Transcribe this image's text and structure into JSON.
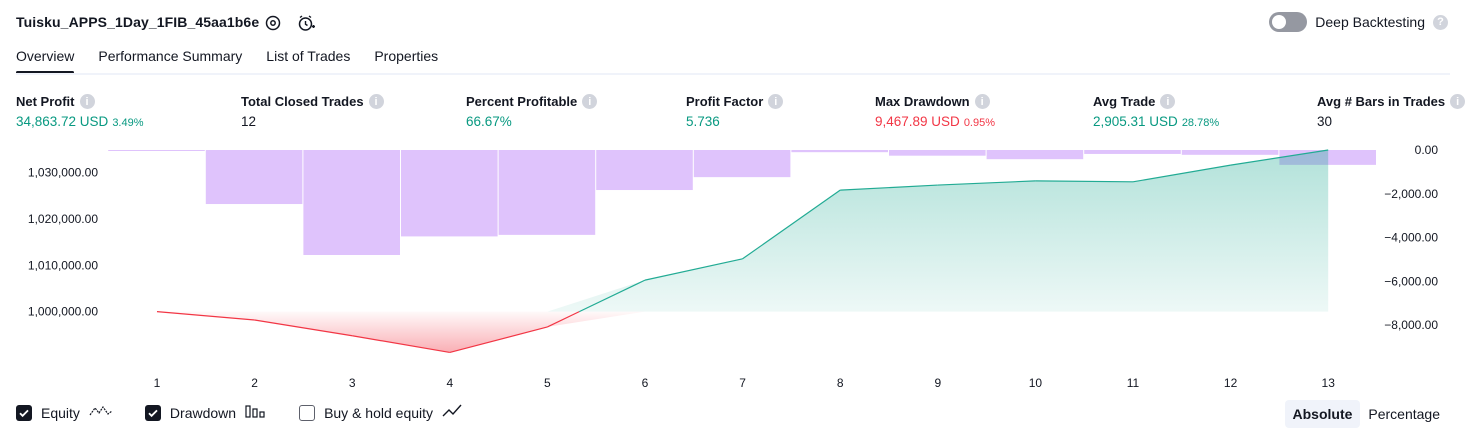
{
  "header": {
    "strategy_name": "Tuisku_APPS_1Day_1FIB_45aa1b6e",
    "settings_icon": "gear-icon",
    "alert_icon": "add-alert-clock-icon",
    "deep_backtesting_label": "Deep Backtesting",
    "deep_backtesting_enabled": false
  },
  "tabs": [
    {
      "label": "Overview",
      "active": true
    },
    {
      "label": "Performance Summary",
      "active": false
    },
    {
      "label": "List of Trades",
      "active": false
    },
    {
      "label": "Properties",
      "active": false
    }
  ],
  "metrics": {
    "net_profit": {
      "label": "Net Profit",
      "value": "34,863.72 USD",
      "sub": "3.49%"
    },
    "total_closed_trades": {
      "label": "Total Closed Trades",
      "value": "12"
    },
    "percent_profitable": {
      "label": "Percent Profitable",
      "value": "66.67%"
    },
    "profit_factor": {
      "label": "Profit Factor",
      "value": "5.736"
    },
    "max_drawdown": {
      "label": "Max Drawdown",
      "value": "9,467.89 USD",
      "sub": "0.95%"
    },
    "avg_trade": {
      "label": "Avg Trade",
      "value": "2,905.31 USD",
      "sub": "28.78%"
    },
    "avg_bars_in_trades": {
      "label": "Avg # Bars in Trades",
      "value": "30"
    }
  },
  "colors": {
    "positive": "#089981",
    "negative": "#f23645",
    "drawdown_bar": "#d9b8fb",
    "equity_line": "#22ab94",
    "equity_fill": "#bfe9e0",
    "equity_neg_line": "#f23645"
  },
  "chart_data": {
    "type": "line",
    "x": [
      1,
      2,
      3,
      4,
      5,
      6,
      7,
      8,
      9,
      10,
      11,
      12,
      13
    ],
    "x_tick_labels": [
      "1",
      "2",
      "3",
      "4",
      "5",
      "6",
      "7",
      "8",
      "9",
      "10",
      "11",
      "12",
      "13"
    ],
    "series": [
      {
        "name": "Equity",
        "axis": "left",
        "values": [
          1000000,
          998200,
          994800,
          991200,
          996700,
          1006800,
          1011400,
          1026200,
          1027300,
          1028200,
          1028000,
          1031600,
          1034860
        ]
      },
      {
        "name": "Drawdown",
        "axis": "right",
        "type": "bar",
        "values": [
          -30,
          -2470,
          -4800,
          -3950,
          -3880,
          -1830,
          -1240,
          -100,
          -260,
          -420,
          -180,
          -220,
          -680
        ]
      }
    ],
    "left_axis": {
      "ticks": [
        1000000,
        1010000,
        1020000,
        1030000
      ],
      "tick_labels": [
        "1,000,000.00",
        "1,010,000.00",
        "1,020,000.00",
        "1,030,000.00"
      ],
      "ylim": [
        990000,
        1034860
      ]
    },
    "right_axis": {
      "ticks": [
        0,
        -2000,
        -4000,
        -6000,
        -8000
      ],
      "tick_labels": [
        "0.00",
        "−2,000.00",
        "−4,000.00",
        "−6,000.00",
        "−8,000.00"
      ],
      "ylim": [
        -8000,
        0
      ]
    },
    "grid": false
  },
  "legend": {
    "equity": {
      "label": "Equity",
      "checked": true,
      "icon": "equity-line-icon"
    },
    "drawdown": {
      "label": "Drawdown",
      "checked": true,
      "icon": "drawdown-bars-icon"
    },
    "buy_hold": {
      "label": "Buy & hold equity",
      "checked": false,
      "icon": "buy-hold-line-icon"
    }
  },
  "mode": {
    "absolute_label": "Absolute",
    "percentage_label": "Percentage",
    "selected": "Absolute"
  }
}
